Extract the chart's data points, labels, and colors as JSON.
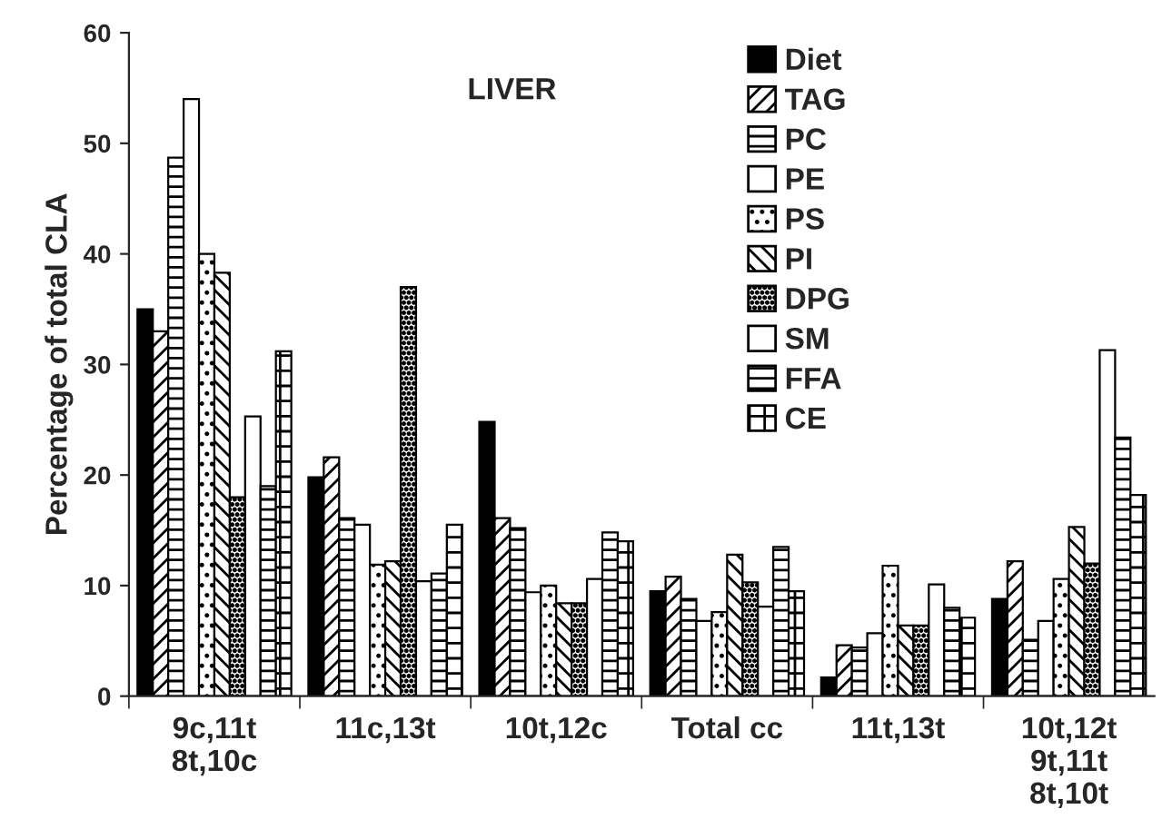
{
  "chart_data": {
    "type": "bar",
    "title": "LIVER",
    "ylabel": "Percentage of total CLA",
    "categories": [
      "9c,11t\n8t,10c",
      "11c,13t",
      "10t,12c",
      "Total cc",
      "11t,13t",
      "10t,12t\n9t,11t\n8t,10t"
    ],
    "series": [
      {
        "name": "Diet",
        "color": "#000000",
        "values": [
          35.0,
          19.8,
          24.8,
          9.5,
          1.7,
          8.8
        ]
      },
      {
        "name": "TAG",
        "color": "#000000",
        "values": [
          33.0,
          21.6,
          16.1,
          10.8,
          4.6,
          12.2
        ]
      },
      {
        "name": "PC",
        "color": "#000000",
        "values": [
          48.7,
          16.1,
          15.2,
          8.8,
          4.4,
          5.1
        ]
      },
      {
        "name": "PE",
        "color": "#ffffff",
        "values": [
          54.0,
          15.5,
          9.4,
          6.8,
          5.7,
          6.8
        ]
      },
      {
        "name": "PS",
        "color": "#000000",
        "values": [
          40.0,
          11.9,
          10.0,
          7.6,
          11.8,
          10.6
        ]
      },
      {
        "name": "PI",
        "color": "#000000",
        "values": [
          38.3,
          12.2,
          8.4,
          12.8,
          6.4,
          15.3
        ]
      },
      {
        "name": "DPG",
        "color": "#000000",
        "values": [
          18.0,
          37.0,
          8.4,
          10.3,
          6.4,
          12.0
        ]
      },
      {
        "name": "SM",
        "color": "#ffffff",
        "values": [
          25.3,
          10.4,
          10.6,
          8.1,
          10.1,
          31.3
        ]
      },
      {
        "name": "FFA",
        "color": "#000000",
        "values": [
          19.0,
          11.1,
          14.8,
          13.5,
          8.0,
          23.4
        ]
      },
      {
        "name": "CE",
        "color": "#000000",
        "values": [
          31.2,
          15.5,
          14.0,
          9.5,
          7.1,
          18.2
        ]
      }
    ],
    "ylim": [
      0,
      60
    ],
    "yticks": [
      0,
      10,
      20,
      30,
      40,
      50,
      60
    ],
    "grid": false,
    "legend": "top right"
  }
}
